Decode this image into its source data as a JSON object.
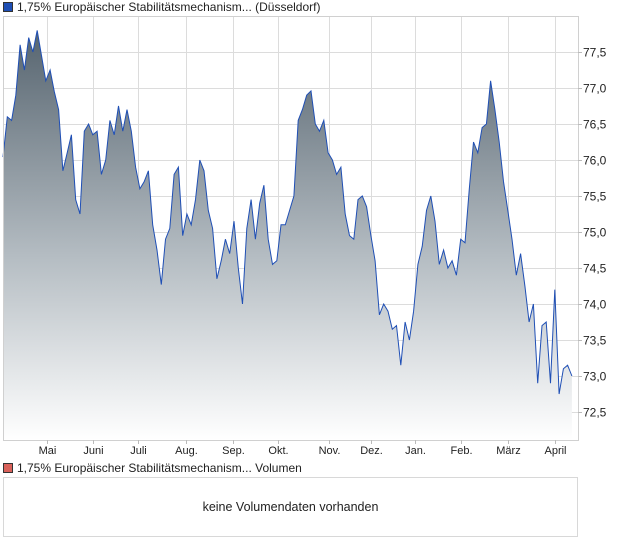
{
  "price_legend": {
    "label": "1,75% Europäischer Stabilitätsmechanism... (Düsseldorf)",
    "color": "#1f4fb5"
  },
  "volume_legend": {
    "label": "1,75% Europäischer Stabilitätsmechanism... Volumen",
    "color": "#d9615a"
  },
  "volume_message": "keine Volumendaten vorhanden",
  "chart_data": {
    "type": "area",
    "title": "1,75% Europäischer Stabilitätsmechanism... (Düsseldorf)",
    "xlabel": "",
    "ylabel": "",
    "ylim": [
      72.1,
      78.0
    ],
    "x_domain_days": [
      0,
      378
    ],
    "grid": true,
    "legend": "top-left",
    "line_color": "#1f4fb5",
    "fill_top_color": "#56646f",
    "y_ticks": [
      {
        "value": 72.5,
        "label": "72,5"
      },
      {
        "value": 73.0,
        "label": "73,0"
      },
      {
        "value": 73.5,
        "label": "73,5"
      },
      {
        "value": 74.0,
        "label": "74,0"
      },
      {
        "value": 74.5,
        "label": "74,5"
      },
      {
        "value": 75.0,
        "label": "75,0"
      },
      {
        "value": 75.5,
        "label": "75,5"
      },
      {
        "value": 76.0,
        "label": "76,0"
      },
      {
        "value": 76.5,
        "label": "76,5"
      },
      {
        "value": 77.0,
        "label": "77,0"
      },
      {
        "value": 77.5,
        "label": "77,5"
      }
    ],
    "x_ticks": [
      {
        "day": 29,
        "label": "Mai"
      },
      {
        "day": 59,
        "label": "Juni"
      },
      {
        "day": 89,
        "label": "Juli"
      },
      {
        "day": 120,
        "label": "Aug."
      },
      {
        "day": 151,
        "label": "Sep."
      },
      {
        "day": 181,
        "label": "Okt."
      },
      {
        "day": 214,
        "label": "Nov."
      },
      {
        "day": 242,
        "label": "Dez."
      },
      {
        "day": 271,
        "label": "Jan."
      },
      {
        "day": 301,
        "label": "Feb."
      },
      {
        "day": 332,
        "label": "März"
      },
      {
        "day": 363,
        "label": "April"
      }
    ],
    "series": [
      {
        "name": "1,75% Europäischer Stabilitätsmechanism... (Düsseldorf)",
        "x_span_days": [
          0,
          374
        ],
        "values": [
          76.04,
          76.6,
          76.55,
          76.9,
          77.6,
          77.25,
          77.7,
          77.5,
          77.8,
          77.45,
          77.1,
          77.25,
          76.95,
          76.7,
          75.85,
          76.1,
          76.35,
          75.45,
          75.25,
          76.4,
          76.5,
          76.35,
          76.4,
          75.8,
          76.0,
          76.55,
          76.35,
          76.75,
          76.4,
          76.7,
          76.4,
          75.9,
          75.6,
          75.7,
          75.85,
          75.1,
          74.75,
          74.27,
          74.9,
          75.05,
          75.8,
          75.9,
          74.95,
          75.25,
          75.1,
          75.45,
          76.0,
          75.85,
          75.3,
          75.05,
          74.35,
          74.6,
          74.9,
          74.7,
          75.15,
          74.5,
          74.0,
          75.05,
          75.45,
          74.9,
          75.4,
          75.65,
          74.9,
          74.55,
          74.6,
          75.1,
          75.1,
          75.3,
          75.5,
          76.55,
          76.7,
          76.9,
          76.96,
          76.5,
          76.4,
          76.55,
          76.1,
          76.0,
          75.8,
          75.9,
          75.25,
          74.95,
          74.9,
          75.45,
          75.5,
          75.35,
          74.95,
          74.6,
          73.85,
          74.0,
          73.9,
          73.65,
          73.7,
          73.15,
          73.75,
          73.5,
          73.9,
          74.55,
          74.8,
          75.3,
          75.5,
          75.15,
          74.55,
          74.75,
          74.5,
          74.6,
          74.4,
          74.9,
          74.85,
          75.6,
          76.25,
          76.1,
          76.45,
          76.5,
          77.1,
          76.7,
          76.25,
          75.7,
          75.3,
          74.9,
          74.4,
          74.7,
          74.25,
          73.75,
          74.0,
          72.9,
          73.7,
          73.75,
          72.9,
          74.2,
          72.75,
          73.1,
          73.15,
          73.0
        ]
      }
    ]
  }
}
